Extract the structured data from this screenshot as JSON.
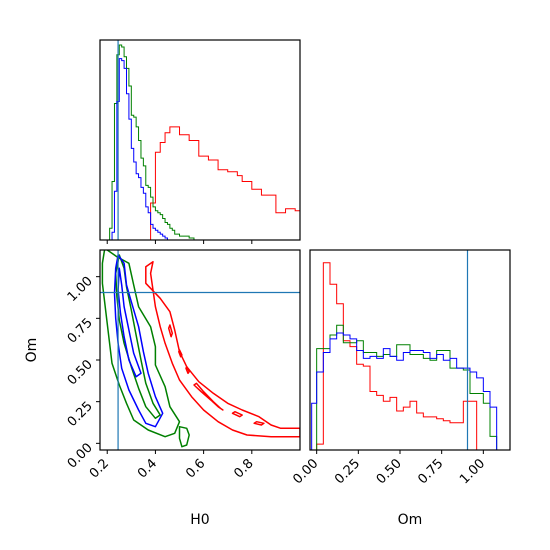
{
  "figure": {
    "type": "corner"
  },
  "chart_data": [
    {
      "id": "h0-marginal",
      "type": "histogram",
      "xlabel": "",
      "ylabel": "",
      "xlim": [
        0.17,
        1.0
      ],
      "truth": 0.245,
      "y_ticks_shown": false,
      "series": [
        {
          "name": "",
          "color": "#ff0000",
          "edges": [
            0.38,
            0.4,
            0.42,
            0.44,
            0.46,
            0.48,
            0.5,
            0.52,
            0.54,
            0.56,
            0.58,
            0.6,
            0.62,
            0.64,
            0.66,
            0.68,
            0.7,
            0.72,
            0.74,
            0.76,
            0.78,
            0.8,
            0.82,
            0.84,
            0.86,
            0.88,
            0.9,
            0.92,
            0.94,
            0.96,
            0.98,
            1.0
          ],
          "heights": [
            0.19,
            0.45,
            0.5,
            0.55,
            0.58,
            0.58,
            0.54,
            0.54,
            0.51,
            0.51,
            0.43,
            0.43,
            0.41,
            0.41,
            0.36,
            0.36,
            0.35,
            0.35,
            0.33,
            0.3,
            0.3,
            0.26,
            0.26,
            0.23,
            0.23,
            0.23,
            0.14,
            0.14,
            0.16,
            0.16,
            0.15
          ]
        },
        {
          "name": "",
          "color": "#008000",
          "edges": [
            0.2,
            0.21,
            0.22,
            0.23,
            0.24,
            0.25,
            0.26,
            0.27,
            0.28,
            0.29,
            0.3,
            0.31,
            0.32,
            0.33,
            0.34,
            0.35,
            0.36,
            0.37,
            0.38,
            0.39,
            0.4,
            0.41,
            0.42,
            0.43,
            0.44,
            0.45,
            0.46,
            0.47,
            0.48,
            0.49,
            0.5,
            0.51,
            0.52,
            0.53,
            0.54,
            0.55,
            0.56
          ],
          "heights": [
            0.0,
            0.06,
            0.3,
            0.7,
            0.95,
            1.0,
            0.99,
            0.94,
            0.88,
            0.79,
            0.64,
            0.63,
            0.58,
            0.51,
            0.42,
            0.38,
            0.28,
            0.27,
            0.22,
            0.17,
            0.15,
            0.14,
            0.13,
            0.11,
            0.09,
            0.08,
            0.06,
            0.05,
            0.03,
            0.03,
            0.02,
            0.02,
            0.02,
            0.02,
            0.01,
            0.01
          ]
        },
        {
          "name": "",
          "color": "#0000ff",
          "edges": [
            0.22,
            0.23,
            0.24,
            0.25,
            0.26,
            0.27,
            0.28,
            0.29,
            0.3,
            0.31,
            0.32,
            0.33,
            0.34,
            0.35,
            0.36,
            0.37,
            0.38,
            0.39,
            0.4,
            0.41,
            0.42,
            0.43,
            0.44,
            0.45
          ],
          "heights": [
            0.04,
            0.25,
            0.71,
            0.93,
            0.92,
            0.88,
            0.75,
            0.62,
            0.47,
            0.4,
            0.34,
            0.32,
            0.27,
            0.24,
            0.17,
            0.14,
            0.08,
            0.06,
            0.05,
            0.04,
            0.03,
            0.02,
            0.01
          ]
        }
      ]
    },
    {
      "id": "h0-om-contours",
      "type": "contour",
      "xlabel": "H0",
      "ylabel": "Om",
      "xlim": [
        0.17,
        1.0
      ],
      "ylim": [
        -0.04,
        1.16
      ],
      "xticks": [
        "0.2",
        "0.4",
        "0.6",
        "0.8"
      ],
      "yticks": [
        "0.00",
        "0.25",
        "0.50",
        "0.75",
        "1.00"
      ],
      "truth": {
        "H0": 0.245,
        "Om": 0.905
      },
      "contours": [
        {
          "color": "#ff0000",
          "points": [
            [
              0.39,
              1.09
            ],
            [
              0.36,
              1.06
            ],
            [
              0.36,
              0.96
            ],
            [
              0.42,
              0.87
            ],
            [
              0.46,
              0.79
            ],
            [
              0.48,
              0.68
            ],
            [
              0.5,
              0.55
            ],
            [
              0.53,
              0.46
            ],
            [
              0.58,
              0.37
            ],
            [
              0.64,
              0.3
            ],
            [
              0.7,
              0.24
            ],
            [
              0.76,
              0.2
            ],
            [
              0.83,
              0.16
            ],
            [
              0.88,
              0.11
            ],
            [
              0.92,
              0.09
            ],
            [
              1.0,
              0.09
            ],
            [
              1.0,
              0.04
            ],
            [
              0.88,
              0.04
            ],
            [
              0.78,
              0.05
            ],
            [
              0.72,
              0.08
            ],
            [
              0.66,
              0.13
            ],
            [
              0.6,
              0.2
            ],
            [
              0.55,
              0.28
            ],
            [
              0.5,
              0.38
            ],
            [
              0.47,
              0.48
            ],
            [
              0.44,
              0.6
            ],
            [
              0.42,
              0.7
            ],
            [
              0.4,
              0.82
            ],
            [
              0.39,
              0.92
            ],
            [
              0.38,
              1.02
            ]
          ]
        },
        {
          "color": "#ff0000",
          "points": [
            [
              0.57,
              0.36
            ],
            [
              0.6,
              0.31
            ],
            [
              0.64,
              0.25
            ],
            [
              0.67,
              0.21
            ],
            [
              0.68,
              0.2
            ],
            [
              0.66,
              0.22
            ],
            [
              0.63,
              0.26
            ],
            [
              0.59,
              0.31
            ],
            [
              0.56,
              0.35
            ]
          ]
        },
        {
          "color": "#ff0000",
          "points": [
            [
              0.72,
              0.18
            ],
            [
              0.75,
              0.16
            ],
            [
              0.76,
              0.17
            ],
            [
              0.73,
              0.19
            ]
          ]
        },
        {
          "color": "#ff0000",
          "points": [
            [
              0.81,
              0.12
            ],
            [
              0.84,
              0.11
            ],
            [
              0.85,
              0.12
            ],
            [
              0.82,
              0.13
            ]
          ]
        },
        {
          "color": "#ff0000",
          "points": [
            [
              0.46,
              0.71
            ],
            [
              0.47,
              0.66
            ],
            [
              0.465,
              0.64
            ],
            [
              0.455,
              0.69
            ]
          ]
        },
        {
          "color": "#ff0000",
          "points": [
            [
              0.5,
              0.56
            ],
            [
              0.51,
              0.53
            ],
            [
              0.505,
              0.52
            ],
            [
              0.497,
              0.55
            ]
          ]
        },
        {
          "color": "#ff0000",
          "points": [
            [
              0.53,
              0.46
            ],
            [
              0.54,
              0.43
            ],
            [
              0.535,
              0.42
            ],
            [
              0.527,
              0.45
            ]
          ]
        },
        {
          "color": "#008000",
          "points": [
            [
              0.19,
              1.17
            ],
            [
              0.24,
              1.12
            ],
            [
              0.29,
              1.08
            ],
            [
              0.31,
              0.95
            ],
            [
              0.33,
              0.82
            ],
            [
              0.38,
              0.7
            ],
            [
              0.4,
              0.58
            ],
            [
              0.4,
              0.47
            ],
            [
              0.44,
              0.34
            ],
            [
              0.46,
              0.22
            ],
            [
              0.5,
              0.13
            ],
            [
              0.48,
              0.06
            ],
            [
              0.44,
              0.04
            ],
            [
              0.37,
              0.08
            ],
            [
              0.31,
              0.14
            ],
            [
              0.28,
              0.24
            ],
            [
              0.25,
              0.35
            ],
            [
              0.22,
              0.48
            ],
            [
              0.21,
              0.6
            ],
            [
              0.2,
              0.72
            ],
            [
              0.19,
              0.84
            ],
            [
              0.18,
              0.96
            ],
            [
              0.18,
              1.08
            ]
          ]
        },
        {
          "color": "#008000",
          "points": [
            [
              0.25,
              1.13
            ],
            [
              0.27,
              1.05
            ],
            [
              0.28,
              0.94
            ],
            [
              0.3,
              0.8
            ],
            [
              0.32,
              0.65
            ],
            [
              0.34,
              0.5
            ],
            [
              0.36,
              0.36
            ],
            [
              0.39,
              0.24
            ],
            [
              0.42,
              0.17
            ],
            [
              0.4,
              0.15
            ],
            [
              0.36,
              0.22
            ],
            [
              0.33,
              0.33
            ],
            [
              0.3,
              0.46
            ],
            [
              0.27,
              0.6
            ],
            [
              0.25,
              0.74
            ],
            [
              0.24,
              0.88
            ],
            [
              0.235,
              1.02
            ]
          ]
        },
        {
          "color": "#008000",
          "points": [
            [
              0.5,
              0.1
            ],
            [
              0.53,
              0.09
            ],
            [
              0.54,
              0.05
            ],
            [
              0.53,
              -0.01
            ],
            [
              0.51,
              -0.02
            ],
            [
              0.5,
              0.03
            ]
          ]
        },
        {
          "color": "#0000ff",
          "points": [
            [
              0.245,
              1.13
            ],
            [
              0.27,
              1.08
            ],
            [
              0.28,
              0.95
            ],
            [
              0.3,
              0.85
            ],
            [
              0.33,
              0.7
            ],
            [
              0.35,
              0.55
            ],
            [
              0.37,
              0.42
            ],
            [
              0.4,
              0.28
            ],
            [
              0.43,
              0.18
            ],
            [
              0.4,
              0.1
            ],
            [
              0.36,
              0.12
            ],
            [
              0.33,
              0.2
            ],
            [
              0.29,
              0.32
            ],
            [
              0.26,
              0.45
            ],
            [
              0.245,
              0.6
            ],
            [
              0.235,
              0.75
            ],
            [
              0.23,
              0.9
            ],
            [
              0.235,
              1.05
            ]
          ]
        },
        {
          "color": "#0000ff",
          "points": [
            [
              0.25,
              1.05
            ],
            [
              0.26,
              0.95
            ],
            [
              0.27,
              0.82
            ],
            [
              0.29,
              0.68
            ],
            [
              0.31,
              0.54
            ],
            [
              0.34,
              0.42
            ],
            [
              0.32,
              0.4
            ],
            [
              0.29,
              0.5
            ],
            [
              0.27,
              0.64
            ],
            [
              0.255,
              0.78
            ],
            [
              0.245,
              0.92
            ]
          ]
        }
      ]
    },
    {
      "id": "om-marginal",
      "type": "histogram",
      "xlabel": "Om",
      "ylabel": "",
      "xlim": [
        -0.04,
        1.16
      ],
      "xticks": [
        "0.00",
        "0.25",
        "0.50",
        "0.75",
        "1.00"
      ],
      "truth": 0.905,
      "y_ticks_shown": false,
      "series": [
        {
          "name": "",
          "color": "#ff0000",
          "edges": [
            0.0,
            0.04,
            0.08,
            0.12,
            0.16,
            0.2,
            0.24,
            0.28,
            0.32,
            0.36,
            0.4,
            0.44,
            0.48,
            0.52,
            0.56,
            0.6,
            0.64,
            0.68,
            0.72,
            0.76,
            0.8,
            0.84,
            0.88,
            0.92,
            0.96,
            1.0
          ],
          "heights": [
            0.03,
            0.96,
            0.85,
            0.75,
            0.56,
            0.53,
            0.44,
            0.43,
            0.3,
            0.28,
            0.25,
            0.27,
            0.2,
            0.22,
            0.25,
            0.19,
            0.17,
            0.17,
            0.16,
            0.15,
            0.14,
            0.14,
            0.25,
            0.25,
            0.0
          ]
        },
        {
          "name": "",
          "color": "#008000",
          "edges": [
            -0.03,
            0.0,
            0.04,
            0.08,
            0.12,
            0.16,
            0.2,
            0.24,
            0.28,
            0.32,
            0.36,
            0.4,
            0.44,
            0.48,
            0.52,
            0.56,
            0.6,
            0.64,
            0.68,
            0.72,
            0.76,
            0.8,
            0.84,
            0.88,
            0.92,
            0.96,
            1.0,
            1.04,
            1.08,
            1.12
          ],
          "heights": [
            0.0,
            0.52,
            0.52,
            0.59,
            0.64,
            0.55,
            0.55,
            0.56,
            0.5,
            0.5,
            0.48,
            0.49,
            0.48,
            0.54,
            0.54,
            0.49,
            0.49,
            0.47,
            0.46,
            0.51,
            0.51,
            0.42,
            0.42,
            0.41,
            0.29,
            0.29,
            0.24,
            0.07,
            0.0
          ]
        },
        {
          "name": "",
          "color": "#0000ff",
          "edges": [
            -0.03,
            0.0,
            0.04,
            0.08,
            0.12,
            0.16,
            0.2,
            0.24,
            0.28,
            0.32,
            0.36,
            0.4,
            0.44,
            0.48,
            0.52,
            0.56,
            0.6,
            0.64,
            0.68,
            0.72,
            0.76,
            0.8,
            0.84,
            0.88,
            0.92,
            0.96,
            1.0,
            1.04,
            1.08,
            1.12
          ],
          "heights": [
            0.24,
            0.4,
            0.5,
            0.57,
            0.6,
            0.59,
            0.57,
            0.51,
            0.47,
            0.48,
            0.47,
            0.52,
            0.48,
            0.46,
            0.5,
            0.51,
            0.51,
            0.5,
            0.47,
            0.49,
            0.46,
            0.47,
            0.42,
            0.42,
            0.4,
            0.37,
            0.3,
            0.22,
            0.0
          ]
        }
      ]
    }
  ]
}
